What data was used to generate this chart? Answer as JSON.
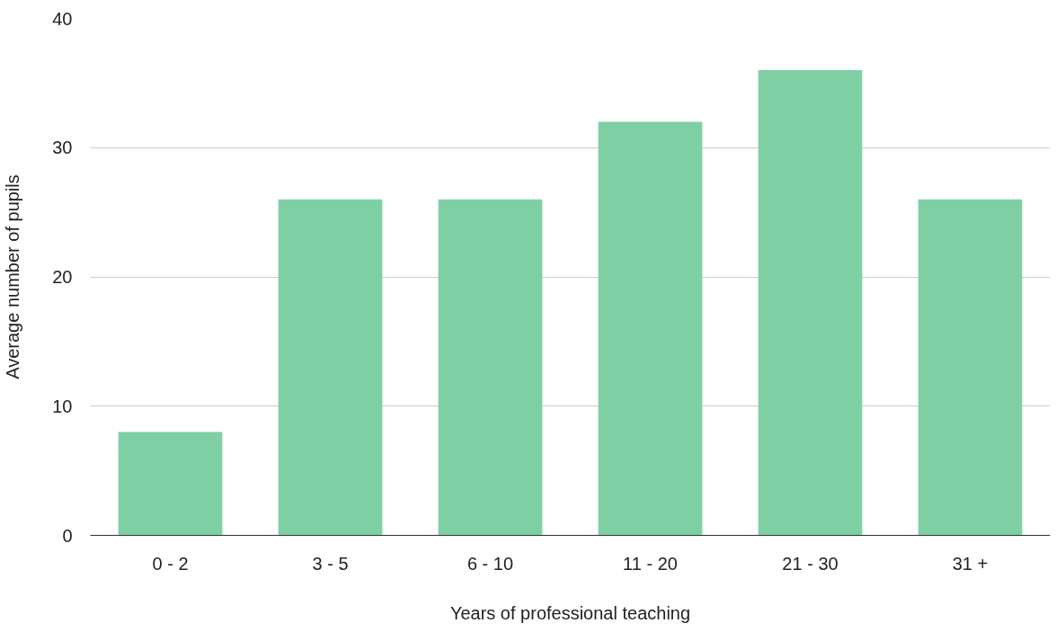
{
  "chart_data": {
    "type": "bar",
    "xlabel": "Years of professional teaching",
    "ylabel": "Average number of pupils",
    "categories": [
      "0 - 2",
      "3 - 5",
      "6 - 10",
      "11 - 20",
      "21 - 30",
      "31 +"
    ],
    "values": [
      8,
      26,
      26,
      32,
      36,
      26
    ],
    "color": "#7fcfa5",
    "ylim": [
      0,
      40
    ],
    "yticks": [
      0,
      10,
      20,
      30,
      40
    ],
    "grid": "y"
  }
}
